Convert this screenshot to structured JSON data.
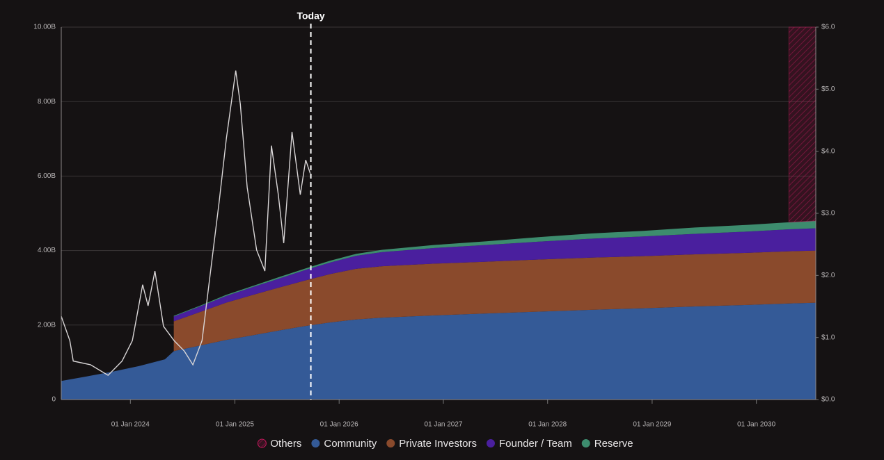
{
  "chart_data": {
    "type": "area",
    "stacked": true,
    "annotation": {
      "text": "Today",
      "x": "2025-09-24"
    },
    "x": [
      "2023-05-04",
      "2023-08-01",
      "2023-11-01",
      "2024-02-01",
      "2024-05-01",
      "2024-06-01",
      "2024-09-01",
      "2024-12-01",
      "2025-03-01",
      "2025-06-01",
      "2025-09-01",
      "2025-12-01",
      "2026-03-01",
      "2026-06-01",
      "2026-12-01",
      "2027-06-01",
      "2027-12-01",
      "2028-06-01",
      "2028-12-01",
      "2029-06-01",
      "2029-12-01",
      "2030-04-25",
      "2030-07-28"
    ],
    "series": [
      {
        "name": "Community",
        "color": "#345a97",
        "values": [
          500000000.0,
          620000000.0,
          750000000.0,
          900000000.0,
          1080000000.0,
          1300000000.0,
          1450000000.0,
          1600000000.0,
          1720000000.0,
          1850000000.0,
          1970000000.0,
          2070000000.0,
          2150000000.0,
          2200000000.0,
          2260000000.0,
          2310000000.0,
          2360000000.0,
          2410000000.0,
          2450000000.0,
          2500000000.0,
          2540000000.0,
          2580000000.0,
          2600000000.0
        ]
      },
      {
        "name": "Private Investors",
        "color": "#8a4a2c",
        "values": [
          null,
          null,
          null,
          null,
          null,
          800000000.0,
          900000000.0,
          1000000000.0,
          1080000000.0,
          1150000000.0,
          1220000000.0,
          1300000000.0,
          1360000000.0,
          1380000000.0,
          1390000000.0,
          1390000000.0,
          1400000000.0,
          1400000000.0,
          1400000000.0,
          1400000000.0,
          1400000000.0,
          1400000000.0,
          1400000000.0
        ]
      },
      {
        "name": "Founder / Team",
        "color": "#4a1f9e",
        "values": [
          null,
          null,
          null,
          null,
          null,
          130000000.0,
          150000000.0,
          180000000.0,
          210000000.0,
          240000000.0,
          280000000.0,
          310000000.0,
          350000000.0,
          380000000.0,
          420000000.0,
          450000000.0,
          480000000.0,
          510000000.0,
          530000000.0,
          550000000.0,
          570000000.0,
          590000000.0,
          600000000.0
        ]
      },
      {
        "name": "Reserve",
        "color": "#3d8c6e",
        "values": [
          null,
          null,
          null,
          null,
          null,
          20000000.0,
          20000000.0,
          30000000.0,
          30000000.0,
          40000000.0,
          40000000.0,
          50000000.0,
          50000000.0,
          60000000.0,
          80000000.0,
          100000000.0,
          120000000.0,
          140000000.0,
          150000000.0,
          170000000.0,
          180000000.0,
          190000000.0,
          200000000.0
        ]
      },
      {
        "name": "Others",
        "color": "#c2185b",
        "pattern": "hatch",
        "values": [
          null,
          null,
          null,
          null,
          null,
          null,
          null,
          null,
          null,
          null,
          null,
          null,
          null,
          null,
          null,
          null,
          null,
          null,
          null,
          null,
          null,
          5240000000.0,
          5200000000.0
        ]
      },
      {
        "type": "line",
        "axis": "y2",
        "color": "#d9d6d7",
        "x": [
          "2023-05-04",
          "2023-06-03",
          "2023-06-15",
          "2023-08-15",
          "2023-10-15",
          "2023-12-03",
          "2024-01-08",
          "2024-02-13",
          "2024-03-03",
          "2024-03-27",
          "2024-04-26",
          "2024-06-02",
          "2024-07-08",
          "2024-08-07",
          "2024-09-08",
          "2024-10-02",
          "2024-11-07",
          "2024-12-02",
          "2025-01-04",
          "2025-01-20",
          "2025-02-13",
          "2025-03-18",
          "2025-04-16",
          "2025-05-09",
          "2025-06-02",
          "2025-06-21",
          "2025-07-20",
          "2025-08-18",
          "2025-09-06",
          "2025-09-22"
        ],
        "values": [
          1.34,
          0.95,
          0.62,
          0.56,
          0.39,
          0.62,
          0.95,
          1.85,
          1.51,
          2.07,
          1.18,
          0.95,
          0.78,
          0.56,
          0.95,
          1.85,
          3.19,
          4.2,
          5.3,
          4.76,
          3.42,
          2.41,
          2.07,
          4.09,
          3.3,
          2.52,
          4.31,
          3.3,
          3.86,
          3.64
        ]
      }
    ],
    "legend_legend_order": [
      "Others",
      "Community",
      "Private Investors",
      "Founder / Team",
      "Reserve"
    ],
    "xlim": [
      "2023-05-04",
      "2030-07-28"
    ],
    "xticks": [
      {
        "value": "2024-01-01",
        "label": "01 Jan 2024"
      },
      {
        "value": "2025-01-01",
        "label": "01 Jan 2025"
      },
      {
        "value": "2026-01-01",
        "label": "01 Jan 2026"
      },
      {
        "value": "2027-01-01",
        "label": "01 Jan 2027"
      },
      {
        "value": "2028-01-01",
        "label": "01 Jan 2028"
      },
      {
        "value": "2029-01-01",
        "label": "01 Jan 2029"
      },
      {
        "value": "2030-01-01",
        "label": "01 Jan 2030"
      }
    ],
    "ylim": [
      0,
      10000000000
    ],
    "yticks": [
      0,
      {
        "value": 2000000000,
        "label": "2.00B"
      },
      {
        "value": 4000000000,
        "label": "4.00B"
      },
      {
        "value": 6000000000,
        "label": "6.00B"
      },
      {
        "value": 8000000000,
        "label": "8.00B"
      },
      {
        "value": 10000000000,
        "label": "10.00B"
      }
    ],
    "y2lim": [
      0,
      6
    ],
    "y2ticks": [
      {
        "value": 0,
        "label": "$0.0"
      },
      {
        "value": 1,
        "label": "$1.0"
      },
      {
        "value": 2,
        "label": "$2.0"
      },
      {
        "value": 3,
        "label": "$3.0"
      },
      {
        "value": 4,
        "label": "$4.0"
      },
      {
        "value": 5,
        "label": "$5.0"
      },
      {
        "value": 6,
        "label": "$6.0"
      }
    ],
    "grid": true,
    "legend": "bottom"
  }
}
